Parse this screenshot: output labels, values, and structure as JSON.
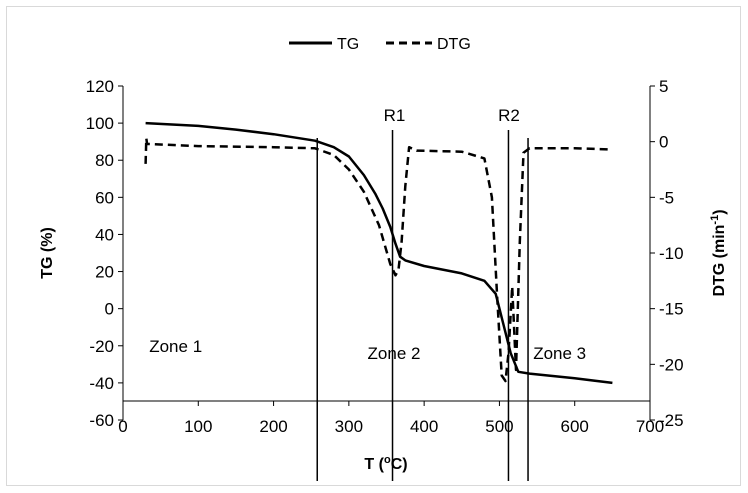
{
  "chart_data": {
    "type": "line",
    "title": "",
    "xlabel_parts": [
      "T (",
      "o",
      "C)"
    ],
    "ylabel": "TG (%)",
    "y2label_parts": [
      "DTG (min",
      "-1",
      ")"
    ],
    "xlim": [
      0,
      700
    ],
    "ylim": [
      -60,
      120
    ],
    "y2lim": [
      -25,
      5
    ],
    "x_ticks": [
      "0",
      "100",
      "200",
      "300",
      "400",
      "500",
      "600",
      "700"
    ],
    "y_ticks": [
      "-60",
      "-40",
      "-20",
      "0",
      "20",
      "40",
      "60",
      "80",
      "100",
      "120"
    ],
    "y2_ticks": [
      "-25",
      "-20",
      "-15",
      "-10",
      "-5",
      "0",
      "5"
    ],
    "grid": false,
    "legend_position": "top-center",
    "series": [
      {
        "name": "TG",
        "axis": "left",
        "style": "solid",
        "x": [
          30,
          100,
          150,
          200,
          255,
          280,
          300,
          320,
          335,
          345,
          355,
          362,
          368,
          375,
          400,
          450,
          480,
          495,
          505,
          515,
          525,
          540,
          600,
          650
        ],
        "y": [
          100,
          98.5,
          96.5,
          94,
          90.5,
          87,
          82,
          72,
          62,
          54,
          44,
          35,
          28,
          26,
          23,
          19,
          15,
          8,
          -8,
          -24,
          -34,
          -35,
          -37.5,
          -40
        ]
      },
      {
        "name": "DTG",
        "axis": "right",
        "style": "dashed",
        "x": [
          30,
          31,
          32,
          100,
          200,
          255,
          280,
          300,
          320,
          340,
          355,
          362,
          366,
          370,
          375,
          380,
          390,
          450,
          480,
          490,
          497,
          503,
          508,
          512,
          517,
          522,
          527,
          532,
          540,
          600,
          650
        ],
        "y": [
          -2,
          0.3,
          -0.2,
          -0.4,
          -0.5,
          -0.6,
          -1.2,
          -2.5,
          -4.5,
          -7.5,
          -11,
          -12,
          -11.5,
          -9,
          -4,
          -0.5,
          -0.8,
          -0.9,
          -1.5,
          -5,
          -14,
          -21,
          -21.5,
          -19,
          -13,
          -20.5,
          -9,
          -1,
          -0.6,
          -0.6,
          -0.7
        ]
      }
    ],
    "annotations": [
      {
        "text": "R1",
        "x": 358
      },
      {
        "text": "R2",
        "x": 510
      },
      {
        "text": "Zone 1",
        "x": 70,
        "y": -20
      },
      {
        "text": "Zone 2",
        "x": 360,
        "y": -24
      },
      {
        "text": "Zone 3",
        "x": 580,
        "y": -24
      }
    ],
    "vertical_lines_x": [
      258,
      358,
      512,
      538
    ]
  }
}
